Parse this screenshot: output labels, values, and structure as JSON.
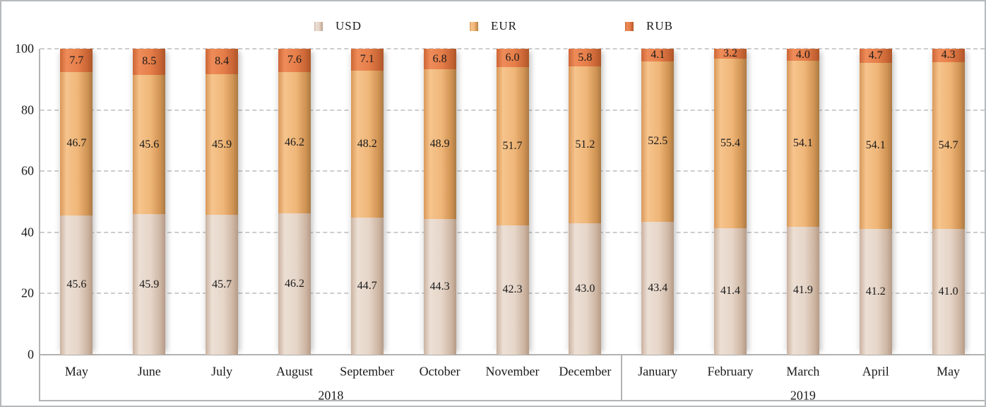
{
  "colors": {
    "usd": "#e3d2c5",
    "eur": "#f0b97e",
    "rub": "#e57c49",
    "axis": "#b3b3b3",
    "grid": "#cdcdcd",
    "text": "#1a1a1a"
  },
  "y_axis": {
    "tick_labels": [
      "0",
      "20",
      "40",
      "60",
      "80",
      "100"
    ]
  },
  "chart_data": {
    "type": "bar",
    "stacked": true,
    "title": "",
    "xlabel": "",
    "ylabel": "",
    "ylim": [
      0,
      100
    ],
    "grid": true,
    "legend_position": "top",
    "categories": [
      "May",
      "June",
      "July",
      "August",
      "September",
      "October",
      "November",
      "December",
      "January",
      "February",
      "March",
      "April",
      "May"
    ],
    "year_groups": [
      {
        "label": "2018",
        "span": 8
      },
      {
        "label": "2019",
        "span": 5
      }
    ],
    "series": [
      {
        "name": "USD",
        "color": "#e3d2c5",
        "values": [
          45.6,
          45.9,
          45.7,
          46.2,
          44.7,
          44.3,
          42.3,
          43.0,
          43.4,
          41.4,
          41.9,
          41.2,
          41.0
        ]
      },
      {
        "name": "EUR",
        "color": "#f0b97e",
        "values": [
          46.7,
          45.6,
          45.9,
          46.2,
          48.2,
          48.9,
          51.7,
          51.2,
          52.5,
          55.4,
          54.1,
          54.1,
          54.7
        ]
      },
      {
        "name": "RUB",
        "color": "#e57c49",
        "values": [
          7.7,
          8.5,
          8.4,
          7.6,
          7.1,
          6.8,
          6.0,
          5.8,
          4.1,
          3.2,
          4.0,
          4.7,
          4.3
        ]
      }
    ]
  }
}
